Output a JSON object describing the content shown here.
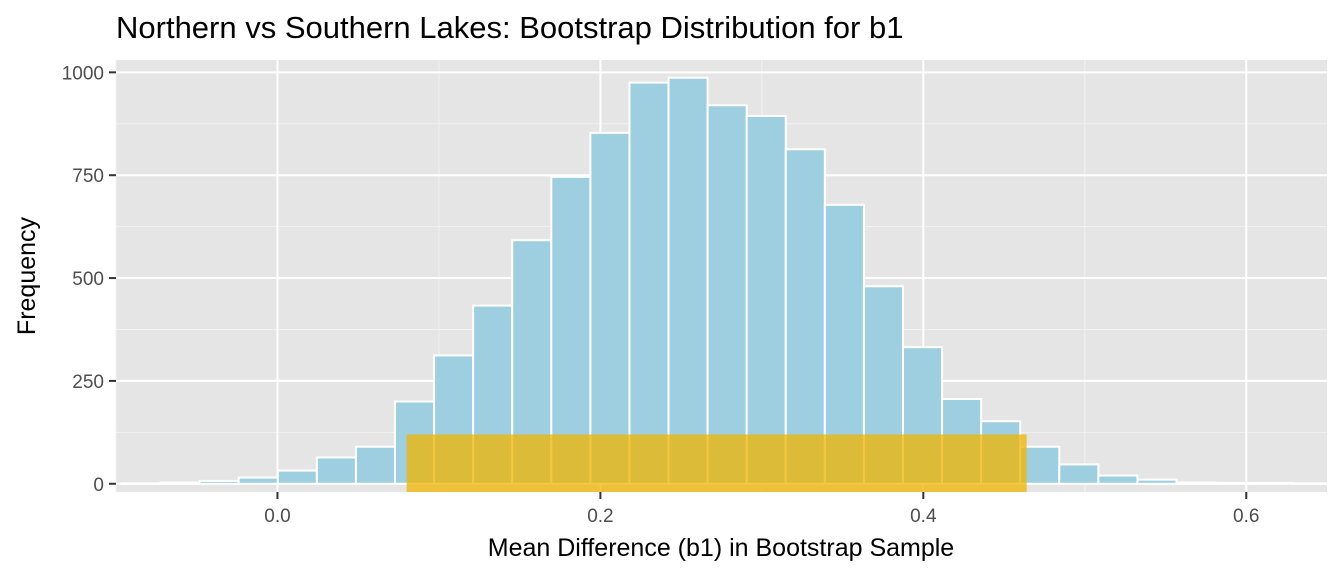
{
  "chart_data": {
    "type": "bar",
    "title": "Northern vs Southern Lakes: Bootstrap Distribution for b1",
    "xlabel": "Mean Difference (b1) in Bootstrap Sample",
    "ylabel": "Frequency",
    "xlim": [
      -0.1,
      0.65
    ],
    "ylim": [
      -20,
      1030
    ],
    "x_ticks": [
      0.0,
      0.2,
      0.4,
      0.6
    ],
    "x_tick_labels": [
      "0.0",
      "0.2",
      "0.4",
      "0.6"
    ],
    "y_ticks": [
      0,
      250,
      500,
      750,
      1000
    ],
    "y_tick_labels": [
      "0",
      "250",
      "500",
      "750",
      "1000"
    ],
    "bin_width": 0.0242,
    "bins": {
      "x_center": [
        -0.0845,
        -0.0603,
        -0.0361,
        -0.0119,
        0.0123,
        0.0365,
        0.0607,
        0.0849,
        0.1091,
        0.1333,
        0.1575,
        0.1817,
        0.2059,
        0.2301,
        0.2543,
        0.2785,
        0.3027,
        0.3269,
        0.3511,
        0.3753,
        0.3995,
        0.4237,
        0.4479,
        0.4721,
        0.4963,
        0.5205,
        0.5447,
        0.5689,
        0.5931,
        0.6173,
        0.6415
      ],
      "count": [
        1,
        3,
        7,
        15,
        32,
        64,
        90,
        200,
        312,
        433,
        592,
        746,
        853,
        975,
        987,
        920,
        894,
        813,
        678,
        480,
        332,
        206,
        152,
        90,
        47,
        20,
        10,
        3,
        2,
        2,
        1
      ]
    },
    "bar_fill": "#9ecfe0",
    "bar_outline": "#ffffff",
    "panel_background": "#e5e5e5",
    "grid": true,
    "highlight_band": {
      "x_range": [
        0.08,
        0.464
      ],
      "y_range": [
        -20,
        120
      ],
      "color": "#f0b400",
      "fill_opacity": 0.75
    }
  }
}
